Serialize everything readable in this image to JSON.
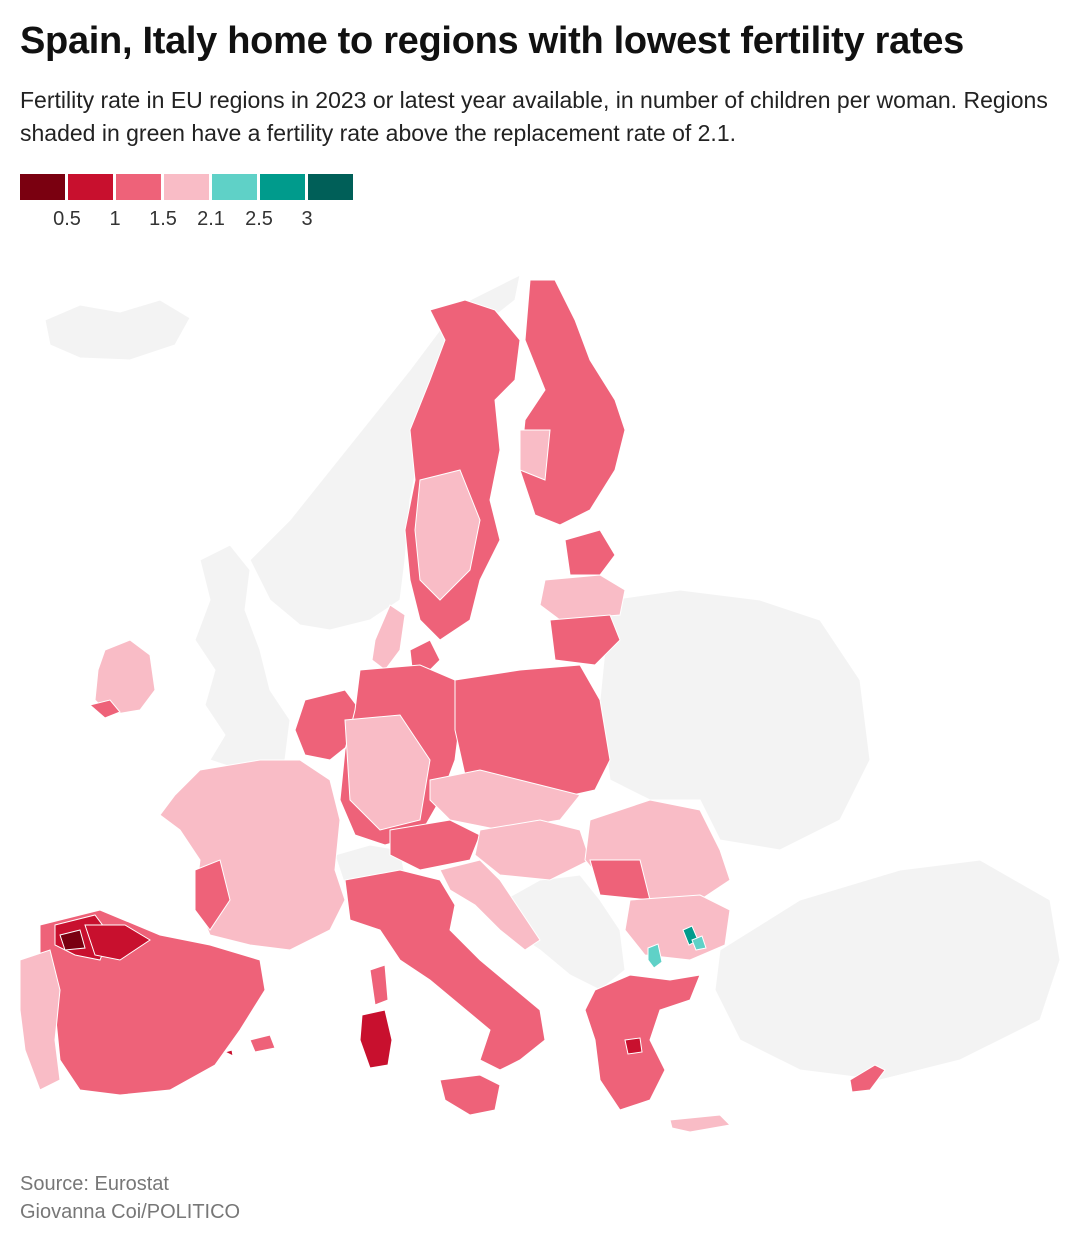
{
  "title": "Spain, Italy home to regions with lowest fertility rates",
  "subtitle": "Fertility rate in EU regions in 2023 or latest year available, in number of children per woman. Regions shaded in green have a fertility rate above the replacement rate of 2.1.",
  "legend": {
    "colors": [
      "#7a0010",
      "#c8102e",
      "#ee6279",
      "#f9bcc6",
      "#5fd1c7",
      "#009b8c",
      "#005f58"
    ],
    "ticks": [
      "0.5",
      "1",
      "1.5",
      "2.1",
      "2.5",
      "3"
    ]
  },
  "map": {
    "background_color": "#f3f3f3",
    "border_color": "#ffffff"
  },
  "footer": {
    "source": "Source: Eurostat",
    "credit": "Giovanna Coi/POLITICO"
  }
}
